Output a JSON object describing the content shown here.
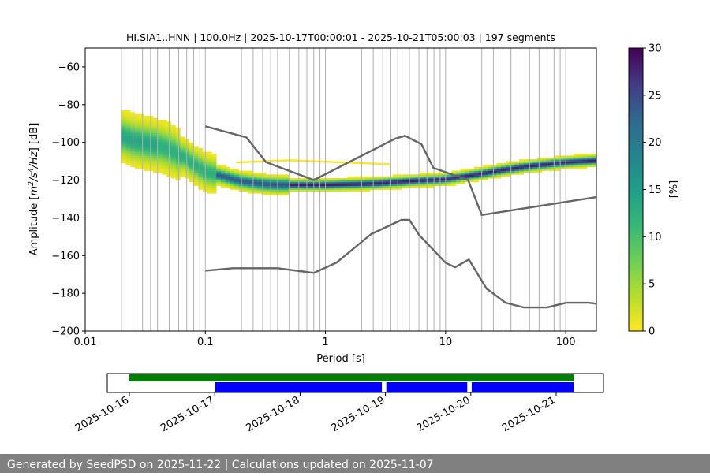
{
  "chart_data": {
    "type": "heatmap",
    "title": "HI.SIA1..HNN | 100.0Hz | 2025-10-17T00:00:01 - 2025-10-21T05:00:03 | 197 segments",
    "xlabel": "Period [s]",
    "ylabel_parts": [
      "Amplitude [",
      "m",
      "2",
      "/s",
      "4",
      "/Hz",
      "] [dB]"
    ],
    "x_scale": "log",
    "xlim": [
      0.01,
      180
    ],
    "ylim": [
      -200,
      -50
    ],
    "x_ticks": [
      0.01,
      0.1,
      1,
      10,
      100
    ],
    "x_tick_labels": [
      "0.01",
      "0.1",
      "1",
      "10",
      "100"
    ],
    "y_ticks": [
      -60,
      -80,
      -100,
      -120,
      -140,
      -160,
      -180,
      -200
    ],
    "y_tick_labels": [
      "−60",
      "−80",
      "−100",
      "−120",
      "−140",
      "−160",
      "−180",
      "−200"
    ],
    "grid_x_periods": [
      0.02,
      0.025,
      0.03,
      0.035,
      0.04,
      0.05,
      0.06,
      0.07,
      0.08,
      0.09,
      0.1,
      0.2,
      0.25,
      0.3,
      0.35,
      0.4,
      0.5,
      0.6,
      0.7,
      0.8,
      0.9,
      1.0,
      2,
      2.5,
      3,
      3.5,
      4,
      5,
      6,
      7,
      8,
      9,
      10,
      20,
      25,
      30,
      35,
      40,
      50,
      60,
      70,
      80,
      90,
      100
    ],
    "grid": true,
    "colorbar": {
      "label": "[%]",
      "range": [
        0,
        30
      ],
      "ticks": [
        0,
        5,
        10,
        15,
        20,
        25,
        30
      ],
      "colormap": "viridis_r"
    },
    "psd_mode_curve": {
      "period": [
        0.02,
        0.025,
        0.03,
        0.04,
        0.05,
        0.06,
        0.07,
        0.08,
        0.1,
        0.15,
        0.2,
        0.3,
        0.4,
        0.5,
        0.7,
        1,
        2,
        3,
        5,
        7,
        10,
        20,
        30,
        50,
        100,
        180
      ],
      "db": [
        -97,
        -99.5,
        -100.5,
        -102,
        -104,
        -107,
        -109,
        -112,
        -116,
        -119,
        -121,
        -122.5,
        -123,
        -123,
        -123,
        -123,
        -122.5,
        -122,
        -121,
        -120.5,
        -120,
        -117,
        -115,
        -113,
        -111,
        -110
      ]
    },
    "high_noise_model": {
      "period": [
        0.1,
        0.22,
        0.32,
        0.8,
        3.8,
        4.6,
        6.3,
        7.9,
        15.4,
        20,
        180
      ],
      "db": [
        -91.5,
        -97.4,
        -110.5,
        -120,
        -98,
        -96.5,
        -101,
        -113.5,
        -120,
        -138.5,
        -129
      ]
    },
    "low_noise_model": {
      "period": [
        0.1,
        0.17,
        0.4,
        0.8,
        1.24,
        2.4,
        4.3,
        5,
        6,
        10,
        12,
        15.6,
        21.9,
        31.6,
        45,
        70,
        101,
        154,
        180
      ],
      "db": [
        -168,
        -166.7,
        -166.7,
        -169.2,
        -163.7,
        -148.6,
        -141.1,
        -141.1,
        -149,
        -163.8,
        -166.2,
        -162.1,
        -177.5,
        -185,
        -187.5,
        -187.5,
        -185,
        -185,
        -185.5
      ]
    },
    "time_axis": {
      "tick_labels": [
        "2025-10-16",
        "2025-10-17",
        "2025-10-18",
        "2025-10-19",
        "2025-10-20",
        "2025-10-21"
      ],
      "data_coverage": [
        [
          "2025-10-16",
          "2025-10-21 05:00"
        ]
      ],
      "psd_coverage": [
        [
          "2025-10-17 00:00",
          "2025-10-18 23:00"
        ],
        [
          "2025-10-19 00:15",
          "2025-10-19 23:00"
        ],
        [
          "2025-10-20 00:15",
          "2025-10-21 05:00"
        ]
      ],
      "colors": {
        "data": "#008000",
        "psd": "#0000ff"
      }
    },
    "colors": {
      "noise_model": "#666666",
      "grid": "#b0b0b0"
    }
  },
  "footer": {
    "text": "Generated by SeedPSD on 2025-11-22 | Calculations updated on 2025-11-07",
    "background": "#808080"
  }
}
